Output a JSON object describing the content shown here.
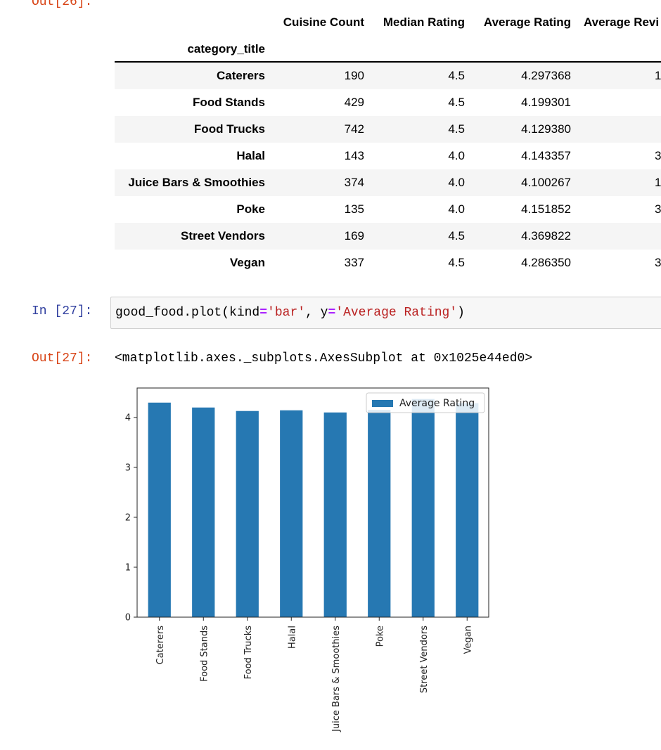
{
  "cells": {
    "out26_prompt": "Out[26]:",
    "in27_prompt": "In [27]:",
    "out27_prompt": "Out[27]:",
    "code": {
      "t1": "good_food.plot(kind",
      "t2": "=",
      "t3": "'bar'",
      "t4": ", y",
      "t5": "=",
      "t6": "'Average Rating'",
      "t7": ")"
    },
    "out27_repr": "<matplotlib.axes._subplots.AxesSubplot at 0x1025e44ed0>"
  },
  "dataframe": {
    "columns": [
      "Cuisine Count",
      "Median Rating",
      "Average Rating",
      "Average Revi"
    ],
    "index_name": "category_title",
    "rows": [
      {
        "label": "Caterers",
        "cells": [
          "190",
          "4.5",
          "4.297368",
          "1"
        ]
      },
      {
        "label": "Food Stands",
        "cells": [
          "429",
          "4.5",
          "4.199301",
          ""
        ]
      },
      {
        "label": "Food Trucks",
        "cells": [
          "742",
          "4.5",
          "4.129380",
          ""
        ]
      },
      {
        "label": "Halal",
        "cells": [
          "143",
          "4.0",
          "4.143357",
          "3"
        ]
      },
      {
        "label": "Juice Bars & Smoothies",
        "cells": [
          "374",
          "4.0",
          "4.100267",
          "1"
        ]
      },
      {
        "label": "Poke",
        "cells": [
          "135",
          "4.0",
          "4.151852",
          "3"
        ]
      },
      {
        "label": "Street Vendors",
        "cells": [
          "169",
          "4.5",
          "4.369822",
          ""
        ]
      },
      {
        "label": "Vegan",
        "cells": [
          "337",
          "4.5",
          "4.286350",
          "3"
        ]
      }
    ]
  },
  "chart_data": {
    "type": "bar",
    "categories": [
      "Caterers",
      "Food Stands",
      "Food Trucks",
      "Halal",
      "Juice Bars & Smoothies",
      "Poke",
      "Street Vendors",
      "Vegan"
    ],
    "series": [
      {
        "name": "Average Rating",
        "values": [
          4.297368,
          4.199301,
          4.12938,
          4.143357,
          4.100267,
          4.151852,
          4.369822,
          4.28635
        ],
        "color": "#2678b2"
      }
    ],
    "yticks": [
      "0",
      "1",
      "2",
      "3",
      "4"
    ],
    "ylim": [
      0,
      4.59
    ],
    "legend": "upper-right",
    "grid": false
  }
}
